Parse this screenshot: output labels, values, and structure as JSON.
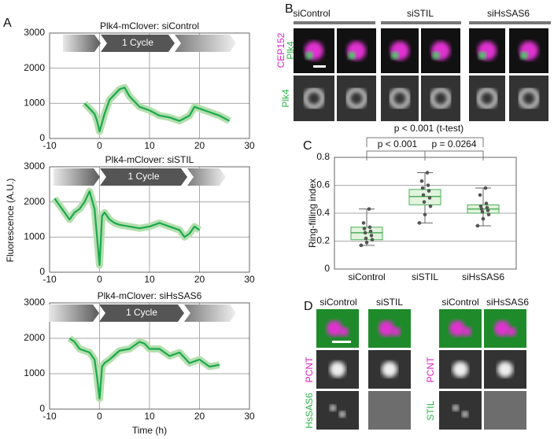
{
  "panel_labels": [
    "A",
    "B",
    "C",
    "D"
  ],
  "chart_data": [
    {
      "type": "line",
      "title": "Plk4-mClover: siControl",
      "annotation": "1 Cycle",
      "color": "#1aa84f",
      "band_color": "#b5dfae",
      "x": [
        -3,
        -2,
        -1,
        -0.5,
        0,
        1,
        2,
        3,
        4,
        5,
        6,
        7,
        8,
        10,
        12,
        14,
        16,
        18,
        19,
        20,
        22,
        24,
        26
      ],
      "values": [
        1000,
        850,
        700,
        500,
        200,
        700,
        1100,
        1250,
        1400,
        1450,
        1200,
        1050,
        900,
        800,
        650,
        600,
        500,
        650,
        900,
        850,
        750,
        650,
        500
      ],
      "xlim": [
        -10,
        30
      ],
      "xticks": [
        -10,
        0,
        10,
        20,
        30
      ],
      "ylim": [
        0,
        3000
      ],
      "yticks": [
        0,
        1000,
        2000,
        3000
      ],
      "grid": true
    },
    {
      "type": "line",
      "title": "Plk4-mClover: siSTIL",
      "annotation": "1 Cycle",
      "ylabel": "Fluorescence (A.U.)",
      "color": "#1aa84f",
      "band_color": "#b5dfae",
      "x": [
        -9,
        -8,
        -7,
        -6,
        -5,
        -4,
        -3,
        -2,
        -1,
        -0.5,
        0,
        0.5,
        1,
        2,
        3,
        4,
        6,
        8,
        10,
        12,
        14,
        16,
        17,
        18,
        19,
        20
      ],
      "values": [
        2100,
        1900,
        1700,
        1500,
        1700,
        1800,
        2000,
        2300,
        1800,
        1000,
        200,
        1600,
        1700,
        1500,
        1400,
        1350,
        1300,
        1250,
        1300,
        1400,
        1300,
        1200,
        1000,
        1100,
        1300,
        1200
      ],
      "xlim": [
        -10,
        30
      ],
      "xticks": [
        -10,
        0,
        10,
        20,
        30
      ],
      "ylim": [
        0,
        3000
      ],
      "yticks": [
        0,
        1000,
        2000,
        3000
      ],
      "grid": true
    },
    {
      "type": "line",
      "title": "Plk4-mClover: siHsSAS6",
      "annotation": "1 Cycle",
      "xlabel": "Time (h)",
      "color": "#1aa84f",
      "band_color": "#b5dfae",
      "x": [
        -6,
        -5,
        -4,
        -3,
        -2,
        -1,
        -0.5,
        0,
        0.5,
        1,
        2,
        4,
        6,
        8,
        9,
        10,
        12,
        14,
        16,
        18,
        20,
        22,
        24
      ],
      "values": [
        2000,
        1900,
        1700,
        1650,
        1600,
        1400,
        900,
        300,
        1200,
        1300,
        1400,
        1650,
        1700,
        1900,
        1850,
        1700,
        1700,
        1500,
        1600,
        1300,
        1400,
        1200,
        1250
      ],
      "xlim": [
        -10,
        30
      ],
      "xticks": [
        -10,
        0,
        10,
        20,
        30
      ],
      "ylim": [
        0,
        3000
      ],
      "yticks": [
        0,
        1000,
        2000,
        3000
      ],
      "grid": true
    },
    {
      "type": "box",
      "ylabel": "Ring-filling index",
      "categories": [
        "siControl",
        "siSTIL",
        "siHsSAS6"
      ],
      "color": "#e2f4de",
      "edge_color": "#4cae5a",
      "boxes": [
        {
          "min": 0.17,
          "q1": 0.21,
          "median": 0.26,
          "q3": 0.3,
          "max": 0.43,
          "points": [
            0.17,
            0.19,
            0.21,
            0.22,
            0.24,
            0.26,
            0.27,
            0.29,
            0.3,
            0.33,
            0.43
          ]
        },
        {
          "min": 0.33,
          "q1": 0.46,
          "median": 0.52,
          "q3": 0.57,
          "max": 0.69,
          "points": [
            0.33,
            0.39,
            0.45,
            0.48,
            0.51,
            0.53,
            0.56,
            0.58,
            0.6,
            0.63,
            0.69
          ]
        },
        {
          "min": 0.31,
          "q1": 0.4,
          "median": 0.43,
          "q3": 0.46,
          "max": 0.58,
          "points": [
            0.31,
            0.36,
            0.39,
            0.41,
            0.42,
            0.43,
            0.44,
            0.45,
            0.47,
            0.53,
            0.58
          ]
        }
      ],
      "annotations": [
        "p < 0.001 (t-test)",
        "p < 0.001",
        "p = 0.0264"
      ],
      "ylim": [
        0,
        0.8
      ],
      "yticks": [
        0,
        0.2,
        0.4,
        0.6,
        0.8
      ],
      "grid": true
    }
  ],
  "panel_b": {
    "columns": [
      "siControl",
      "siSTIL",
      "siHsSAS6"
    ],
    "rows": [
      "CEP152",
      "Plk4",
      "Plk4"
    ]
  },
  "panel_d": {
    "columns": [
      "siControl",
      "siSTIL",
      "siControl",
      "siHsSAS6"
    ],
    "left_rows": [
      "PCNT",
      "HsSAS6"
    ],
    "right_rows": [
      "PCNT",
      "STIL"
    ]
  }
}
